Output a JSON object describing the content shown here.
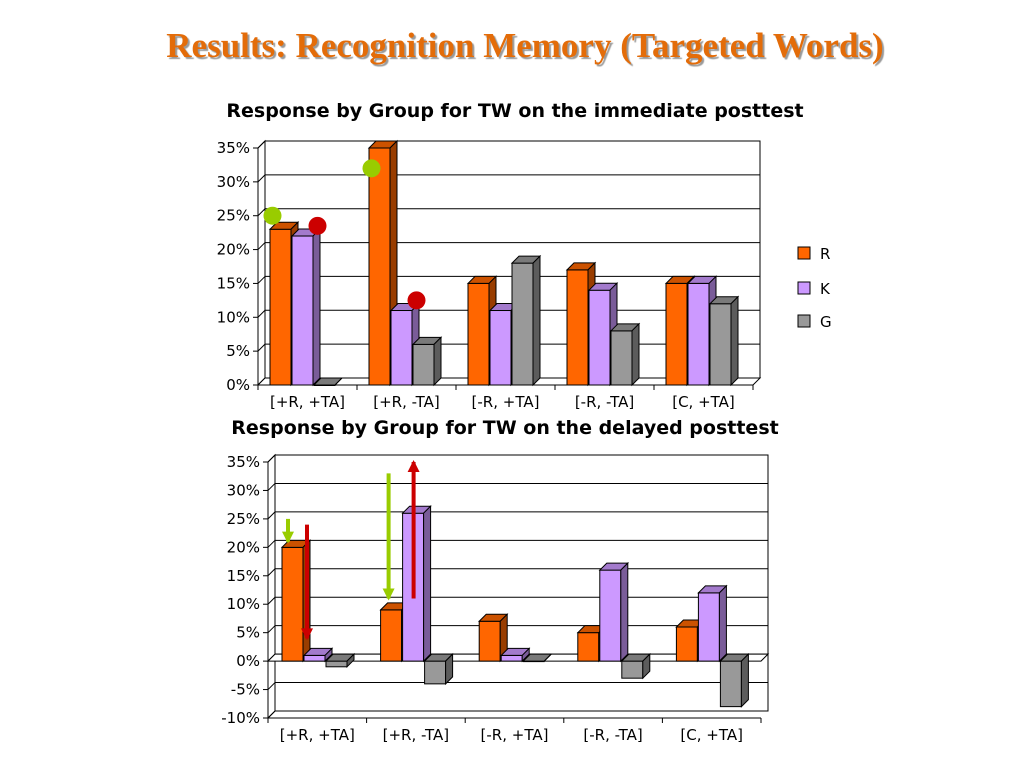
{
  "slide": {
    "title": "Results: Recognition Memory (Targeted Words)"
  },
  "colors": {
    "R": "#ff6600",
    "K": "#cc99ff",
    "G": "#999999",
    "title": "#e36c09",
    "green_marker": "#99cc00",
    "red_marker": "#cc0000"
  },
  "chart_data": [
    {
      "type": "bar",
      "title": "Response by Group for TW on the immediate posttest",
      "categories": [
        "[+R, +TA]",
        "[+R, -TA]",
        "[-R, +TA]",
        "[-R, -TA]",
        "[C, +TA]"
      ],
      "series": [
        {
          "name": "R",
          "values": [
            23,
            35,
            15,
            17,
            15
          ]
        },
        {
          "name": "K",
          "values": [
            22,
            11,
            11,
            14,
            15
          ]
        },
        {
          "name": "G",
          "values": [
            0,
            6,
            18,
            8,
            12
          ]
        }
      ],
      "ylim": [
        0,
        35
      ],
      "yticks": [
        "0%",
        "5%",
        "10%",
        "15%",
        "20%",
        "25%",
        "30%",
        "35%"
      ],
      "grid": true,
      "legend": "right",
      "annotations": [
        {
          "type": "dot",
          "color": "green",
          "category": "[+R, +TA]",
          "series": "R",
          "value": 25
        },
        {
          "type": "dot",
          "color": "red",
          "category": "[+R, +TA]",
          "series": "K",
          "value": 23.5
        },
        {
          "type": "dot",
          "color": "green",
          "category": "[+R, -TA]",
          "series": "R",
          "value": 32
        },
        {
          "type": "dot",
          "color": "red",
          "category": "[+R, -TA]",
          "series": "K",
          "value": 12.5
        }
      ]
    },
    {
      "type": "bar",
      "title": "Response by Group for TW on the delayed posttest",
      "categories": [
        "[+R, +TA]",
        "[+R, -TA]",
        "[-R, +TA]",
        "[-R, -TA]",
        "[C, +TA]"
      ],
      "series": [
        {
          "name": "R",
          "values": [
            20,
            9,
            7,
            5,
            6
          ]
        },
        {
          "name": "K",
          "values": [
            1,
            26,
            1,
            16,
            12
          ]
        },
        {
          "name": "G",
          "values": [
            -1,
            -4,
            0,
            -3,
            -8
          ]
        }
      ],
      "ylim": [
        -10,
        35
      ],
      "yticks": [
        "-10%",
        "-5%",
        "0%",
        "5%",
        "10%",
        "15%",
        "20%",
        "25%",
        "30%",
        "35%"
      ],
      "grid": true,
      "annotations": [
        {
          "type": "arrow",
          "color": "green",
          "direction": "down",
          "category": "[+R, +TA]",
          "from": 25,
          "to": 21
        },
        {
          "type": "arrow",
          "color": "red",
          "direction": "down",
          "category": "[+R, +TA]",
          "from": 24,
          "to": 4
        },
        {
          "type": "arrow",
          "color": "green",
          "direction": "down",
          "category": "[+R, -TA]",
          "from": 33,
          "to": 11
        },
        {
          "type": "arrow",
          "color": "red",
          "direction": "up",
          "category": "[+R, -TA]",
          "from": 11,
          "to": 35
        }
      ]
    }
  ]
}
